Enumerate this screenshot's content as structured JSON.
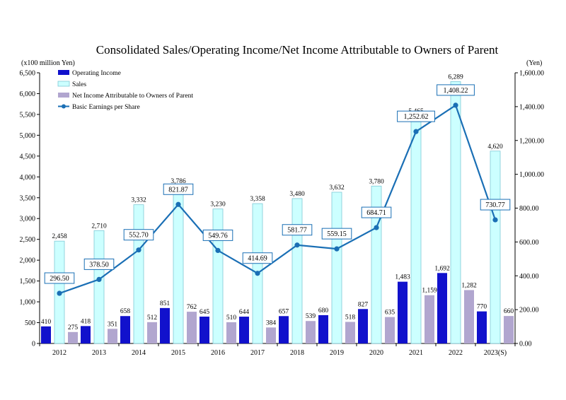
{
  "chart_data": {
    "type": "bar",
    "title": "Consolidated Sales/Operating Income/Net Income Attributable to Owners of Parent",
    "ylabel_left": "(x100 million Yen)",
    "ylabel_right": "(Yen)",
    "ylim_left": [
      0,
      6500
    ],
    "ylim_right": [
      0,
      1600
    ],
    "yticks_left": [
      "0",
      "500",
      "1,000",
      "1,500",
      "2,000",
      "2,500",
      "3,000",
      "3,500",
      "4,000",
      "4,500",
      "5,000",
      "5,500",
      "6,000",
      "6,500"
    ],
    "yticks_right": [
      "0.00",
      "200.00",
      "400.00",
      "600.00",
      "800.00",
      "1,000.00",
      "1,200.00",
      "1,400.00",
      "1,600.00"
    ],
    "categories": [
      "2012",
      "2013",
      "2014",
      "2015",
      "2016",
      "2017",
      "2018",
      "2019",
      "2020",
      "2021",
      "2022",
      "2023(S)"
    ],
    "legend_position": "top-left",
    "grid": false,
    "series": [
      {
        "name": "Operating Income",
        "kind": "bar",
        "axis": "left",
        "color": "#1111cc",
        "values": [
          410,
          418,
          658,
          851,
          645,
          644,
          657,
          680,
          827,
          1483,
          1692,
          770
        ],
        "labels": [
          "410",
          "418",
          "658",
          "851",
          "645",
          "644",
          "657",
          "680",
          "827",
          "1,483",
          "1,692",
          "770"
        ]
      },
      {
        "name": "Sales",
        "kind": "bar",
        "axis": "left",
        "color": "#ccffff",
        "values": [
          2458,
          2710,
          3332,
          3786,
          3230,
          3358,
          3480,
          3632,
          3780,
          5465,
          6289,
          4620
        ],
        "labels": [
          "2,458",
          "2,710",
          "3,332",
          "3,786",
          "3,230",
          "3,358",
          "3,480",
          "3,632",
          "3,780",
          "5,465",
          "6,289",
          "4,620"
        ]
      },
      {
        "name": "Net Income Attributable to Owners of Parent",
        "kind": "bar",
        "axis": "left",
        "color": "#b1a6cf",
        "values": [
          275,
          351,
          512,
          762,
          510,
          384,
          539,
          518,
          635,
          1159,
          1282,
          660
        ],
        "labels": [
          "275",
          "351",
          "512",
          "762",
          "510",
          "384",
          "539",
          "518",
          "635",
          "1,159",
          "1,282",
          "660"
        ]
      },
      {
        "name": "Basic Earnings per Share",
        "kind": "line",
        "axis": "right",
        "color": "#1a6fb5",
        "values": [
          296.5,
          378.5,
          552.7,
          821.87,
          549.76,
          414.69,
          581.77,
          559.15,
          684.71,
          1252.62,
          1408.22,
          730.77
        ],
        "labels": [
          "296.50",
          "378.50",
          "552.70",
          "821.87",
          "549.76",
          "414.69",
          "581.77",
          "559.15",
          "684.71",
          "1,252.62",
          "1,408.22",
          "730.77"
        ]
      }
    ]
  }
}
